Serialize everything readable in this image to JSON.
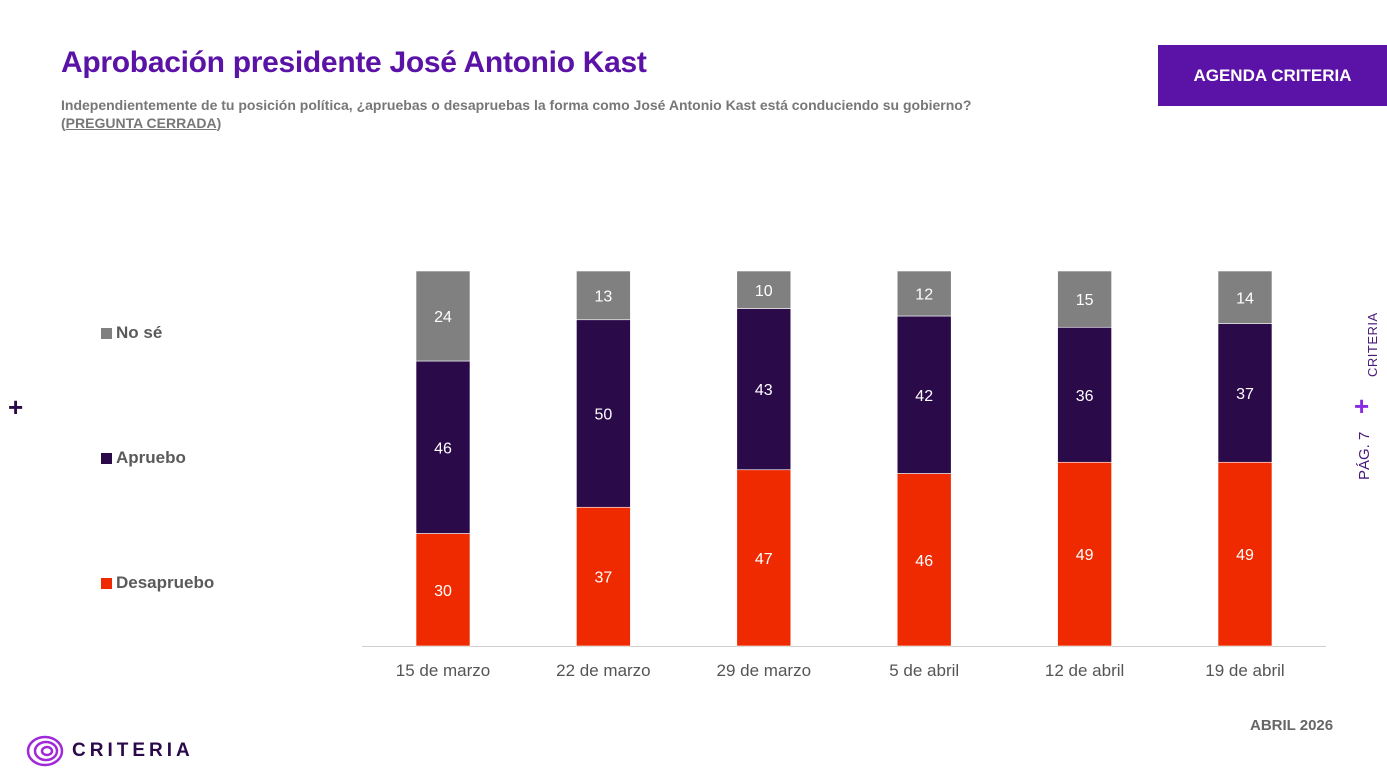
{
  "header": {
    "title": "Aprobación presidente José Antonio Kast",
    "subtitle_text": "Independientemente de tu posición política, ¿apruebas o desapruebas la forma como José Antonio Kast está conduciendo su gobierno? (",
    "subtitle_closed": "PREGUNTA CERRADA",
    "subtitle_end": ")",
    "badge": "AGENDA CRITERIA"
  },
  "side": {
    "brand": "CRITERIA",
    "plus": "+",
    "page": "PÁG. 7"
  },
  "footer": {
    "date": "ABRIL 2026",
    "logo_text": "CRITERIA"
  },
  "colors": {
    "no_se": "#808080",
    "apruebo": "#2b0a4a",
    "desapruebo": "#f02a00",
    "accent": "#5b12a6"
  },
  "chart_data": {
    "type": "bar",
    "stacked": true,
    "categories": [
      "15 de marzo",
      "22 de marzo",
      "29 de marzo",
      "5 de abril",
      "12 de abril",
      "19 de abril"
    ],
    "series": [
      {
        "name": "Desapruebo",
        "values": [
          30,
          37,
          47,
          46,
          49,
          49
        ],
        "color": "#f02a00"
      },
      {
        "name": "Apruebo",
        "values": [
          46,
          50,
          43,
          42,
          36,
          37
        ],
        "color": "#2b0a4a"
      },
      {
        "name": "No sé",
        "values": [
          24,
          13,
          10,
          12,
          15,
          14
        ],
        "color": "#808080"
      }
    ],
    "legend_order": [
      "No sé",
      "Apruebo",
      "Desapruebo"
    ],
    "legend_position": "left",
    "ylim": [
      0,
      100
    ],
    "grid": false
  }
}
